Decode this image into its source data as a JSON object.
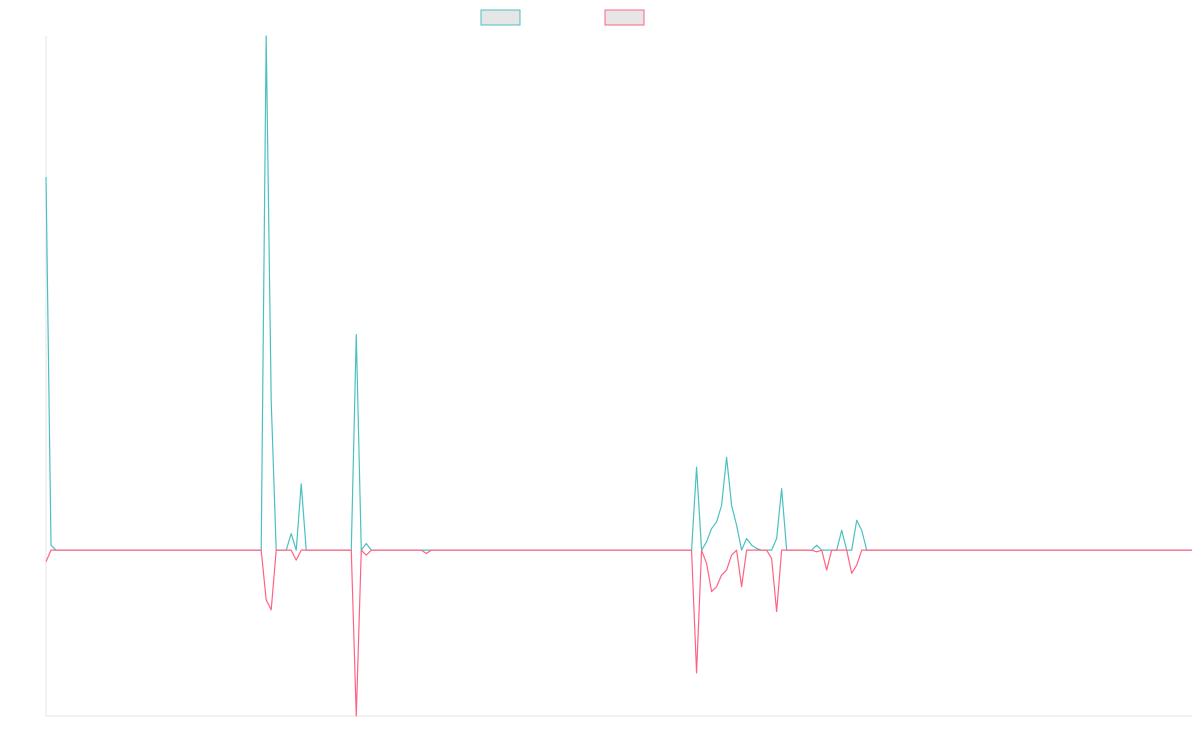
{
  "chart_data": {
    "type": "line",
    "title": "",
    "xlabel": "",
    "ylabel": "",
    "x_count": 230,
    "ylim": [
      -1.0,
      3.1
    ],
    "grid": false,
    "legend_position": "top-center",
    "series": [
      {
        "color": "#4bc0c0",
        "legend_fill": "#e6e6e6",
        "points": [
          [
            0,
            2.25
          ],
          [
            1,
            0.03
          ],
          [
            2,
            0.0
          ],
          [
            43,
            0.0
          ],
          [
            44,
            3.1
          ],
          [
            45,
            0.9
          ],
          [
            46,
            0.0
          ],
          [
            47,
            0.0
          ],
          [
            48,
            0.0
          ],
          [
            49,
            0.1
          ],
          [
            50,
            0.0
          ],
          [
            51,
            0.4
          ],
          [
            52,
            0.0
          ],
          [
            61,
            0.0
          ],
          [
            62,
            1.3
          ],
          [
            63,
            0.0
          ],
          [
            64,
            0.04
          ],
          [
            65,
            0.0
          ],
          [
            75,
            0.0
          ],
          [
            76,
            0.0
          ],
          [
            77,
            0.0
          ],
          [
            129,
            0.0
          ],
          [
            130,
            0.5
          ],
          [
            131,
            0.0
          ],
          [
            132,
            0.05
          ],
          [
            133,
            0.13
          ],
          [
            134,
            0.17
          ],
          [
            135,
            0.27
          ],
          [
            136,
            0.56
          ],
          [
            137,
            0.27
          ],
          [
            138,
            0.15
          ],
          [
            139,
            0.0
          ],
          [
            140,
            0.07
          ],
          [
            141,
            0.03
          ],
          [
            142,
            0.01
          ],
          [
            143,
            0.0
          ],
          [
            144,
            0.0
          ],
          [
            145,
            0.0
          ],
          [
            146,
            0.07
          ],
          [
            147,
            0.37
          ],
          [
            148,
            0.0
          ],
          [
            153,
            0.0
          ],
          [
            154,
            0.03
          ],
          [
            155,
            0.0
          ],
          [
            158,
            0.0
          ],
          [
            159,
            0.12
          ],
          [
            160,
            0.0
          ],
          [
            161,
            0.0
          ],
          [
            162,
            0.18
          ],
          [
            163,
            0.12
          ],
          [
            164,
            0.0
          ],
          [
            229,
            0.0
          ]
        ]
      },
      {
        "color": "#ff6384",
        "legend_fill": "#e6e6e6",
        "points": [
          [
            0,
            -0.07
          ],
          [
            1,
            0.0
          ],
          [
            2,
            0.0
          ],
          [
            43,
            0.0
          ],
          [
            44,
            -0.3
          ],
          [
            45,
            -0.36
          ],
          [
            46,
            0.0
          ],
          [
            47,
            0.0
          ],
          [
            48,
            0.0
          ],
          [
            49,
            0.0
          ],
          [
            50,
            -0.06
          ],
          [
            51,
            0.0
          ],
          [
            52,
            0.0
          ],
          [
            61,
            0.0
          ],
          [
            62,
            -1.0
          ],
          [
            63,
            0.0
          ],
          [
            64,
            -0.03
          ],
          [
            65,
            0.0
          ],
          [
            75,
            0.0
          ],
          [
            76,
            -0.02
          ],
          [
            77,
            0.0
          ],
          [
            129,
            0.0
          ],
          [
            130,
            -0.74
          ],
          [
            131,
            0.0
          ],
          [
            132,
            -0.08
          ],
          [
            133,
            -0.25
          ],
          [
            134,
            -0.22
          ],
          [
            135,
            -0.15
          ],
          [
            136,
            -0.12
          ],
          [
            137,
            -0.03
          ],
          [
            138,
            0.0
          ],
          [
            139,
            -0.22
          ],
          [
            140,
            0.0
          ],
          [
            141,
            0.0
          ],
          [
            142,
            0.0
          ],
          [
            143,
            0.0
          ],
          [
            144,
            0.0
          ],
          [
            145,
            -0.05
          ],
          [
            146,
            -0.37
          ],
          [
            147,
            0.0
          ],
          [
            148,
            0.0
          ],
          [
            153,
            0.0
          ],
          [
            154,
            -0.01
          ],
          [
            155,
            0.0
          ],
          [
            156,
            -0.12
          ],
          [
            157,
            0.0
          ],
          [
            158,
            0.0
          ],
          [
            159,
            0.0
          ],
          [
            160,
            0.0
          ],
          [
            161,
            -0.14
          ],
          [
            162,
            -0.09
          ],
          [
            163,
            0.0
          ],
          [
            164,
            0.0
          ],
          [
            229,
            0.0
          ]
        ]
      }
    ]
  }
}
